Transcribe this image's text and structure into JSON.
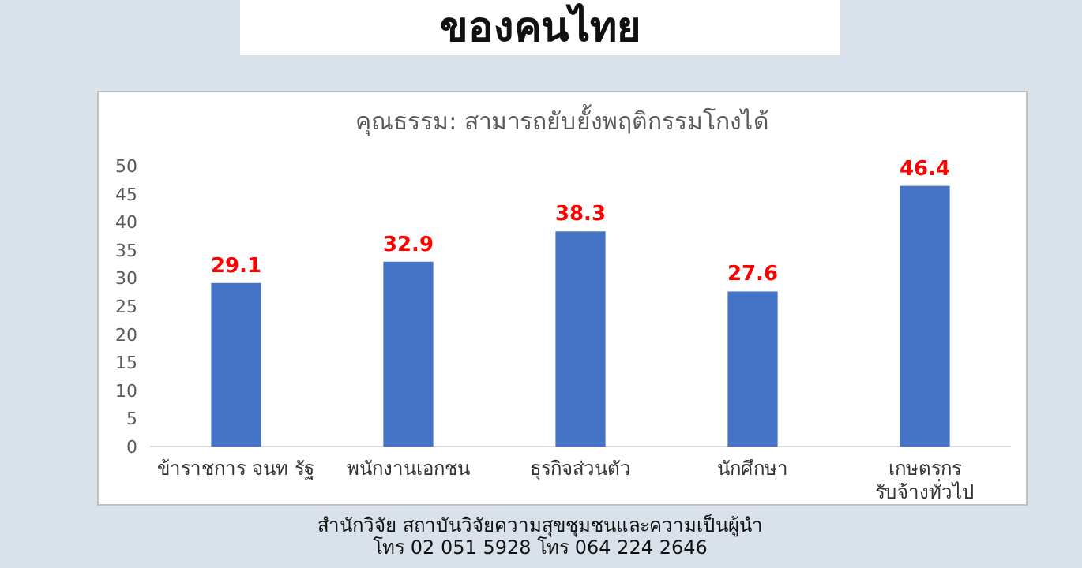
{
  "chart_data": {
    "type": "bar",
    "title": "ของคนไทย",
    "subtitle": "คุณธรรม:  สามารถยับยั้งพฤติกรรมโกงได้",
    "categories": [
      "ข้าราชการ จนท รัฐ",
      "พนักงานเอกชน",
      "ธุรกิจส่วนตัว",
      "นักศึกษา",
      "เกษตรกร\nรับจ้างทั่วไป"
    ],
    "values": [
      29.1,
      32.9,
      38.3,
      27.6,
      46.4
    ],
    "color": "#4472c4",
    "data_labels": true,
    "ylim": [
      0,
      50
    ],
    "yticks": [
      0,
      5,
      10,
      15,
      20,
      25,
      30,
      35,
      40,
      45,
      50
    ],
    "grid": false,
    "annotations": [
      "สำนักวิจัย สถาบันวิจัยความสุขชุมชนและความเป็นผู้นำ",
      "โทร 02 051 5928  โทร 064 224 2646"
    ]
  }
}
